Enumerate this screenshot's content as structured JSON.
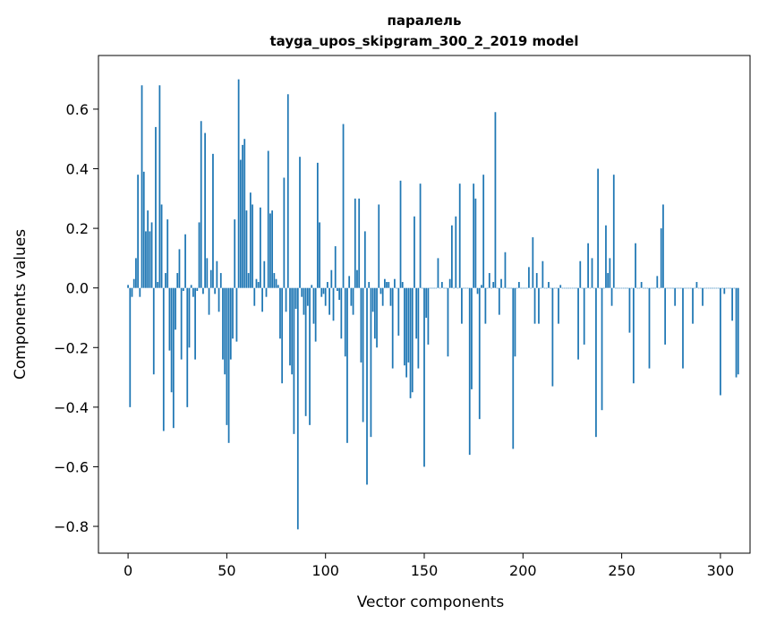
{
  "chart_data": {
    "type": "bar",
    "title_line1": "паралель",
    "title_line2": "tayga_upos_skipgram_300_2_2019 model",
    "xlabel": "Vector components",
    "ylabel": "Components values",
    "xlim": [
      -15,
      315
    ],
    "ylim": [
      -0.89,
      0.78
    ],
    "x_ticks": [
      0,
      50,
      100,
      150,
      200,
      250,
      300
    ],
    "x_tick_labels": [
      "0",
      "50",
      "100",
      "150",
      "200",
      "250",
      "300"
    ],
    "y_ticks": [
      -0.8,
      -0.6,
      -0.4,
      -0.2,
      0.0,
      0.2,
      0.4,
      0.6
    ],
    "y_tick_labels": [
      "−0.8",
      "−0.6",
      "−0.4",
      "−0.2",
      "0.0",
      "0.2",
      "0.4",
      "0.6"
    ],
    "bar_color": "#1f77b4",
    "grid": false,
    "values": [
      0.01,
      -0.4,
      -0.03,
      0.03,
      0.1,
      0.38,
      -0.03,
      0.68,
      0.39,
      0.19,
      0.26,
      0.19,
      0.22,
      -0.29,
      0.54,
      0.02,
      0.68,
      0.28,
      -0.48,
      0.05,
      0.23,
      -0.21,
      -0.35,
      -0.47,
      -0.14,
      0.05,
      0.13,
      -0.24,
      -0.01,
      0.18,
      -0.4,
      -0.2,
      0.01,
      -0.03,
      -0.24,
      -0.01,
      0.22,
      0.56,
      -0.02,
      0.52,
      0.1,
      -0.09,
      0.06,
      0.45,
      -0.02,
      0.09,
      -0.08,
      0.05,
      -0.24,
      -0.29,
      -0.46,
      -0.52,
      -0.24,
      -0.17,
      0.23,
      -0.18,
      0.7,
      0.43,
      0.48,
      0.5,
      0.26,
      0.05,
      0.32,
      0.28,
      -0.06,
      0.03,
      0.02,
      0.27,
      -0.08,
      0.09,
      -0.03,
      0.46,
      0.25,
      0.26,
      0.05,
      0.03,
      0.01,
      -0.17,
      -0.32,
      0.37,
      -0.08,
      0.65,
      -0.26,
      -0.29,
      -0.49,
      -0.07,
      -0.81,
      0.44,
      -0.03,
      -0.09,
      -0.43,
      -0.06,
      -0.46,
      0.01,
      -0.12,
      -0.18,
      0.42,
      0.22,
      -0.03,
      -0.02,
      -0.06,
      0.02,
      -0.09,
      0.06,
      -0.11,
      0.14,
      -0.01,
      -0.04,
      -0.17,
      0.55,
      -0.23,
      -0.52,
      0.04,
      -0.06,
      -0.09,
      0.3,
      0.06,
      0.3,
      -0.25,
      -0.45,
      0.19,
      -0.66,
      0.02,
      -0.5,
      -0.08,
      -0.17,
      -0.2,
      0.28,
      -0.02,
      -0.06,
      0.03,
      0.02,
      0.02,
      -0.06,
      -0.27,
      0.03,
      0.0,
      -0.16,
      0.36,
      0.02,
      -0.26,
      -0.3,
      -0.25,
      -0.37,
      -0.35,
      0.24,
      -0.17,
      -0.27,
      0.35,
      0.0,
      -0.6,
      -0.1,
      -0.19,
      0.0,
      0.0,
      0.0,
      0.0,
      0.1,
      0.0,
      0.02,
      0.0,
      0.0,
      -0.23,
      0.03,
      0.21,
      0.0,
      0.24,
      0.0,
      0.35,
      -0.12,
      0.0,
      0.0,
      0.0,
      -0.56,
      -0.34,
      0.35,
      0.3,
      -0.02,
      -0.44,
      0.01,
      0.38,
      -0.12,
      0.0,
      0.05,
      0.0,
      0.02,
      0.59,
      0.0,
      -0.09,
      0.03,
      0.0,
      0.12,
      0.0,
      0.0,
      0.0,
      -0.54,
      -0.23,
      0.0,
      0.02,
      0.0,
      0.0,
      0.0,
      0.0,
      0.07,
      0.0,
      0.17,
      -0.12,
      0.05,
      -0.12,
      0.0,
      0.09,
      0.0,
      0.0,
      0.02,
      0.0,
      -0.33,
      0.0,
      0.0,
      -0.12,
      0.01,
      0.0,
      0.0,
      0.0,
      0.0,
      0.0,
      0.0,
      0.0,
      0.0,
      -0.24,
      0.09,
      0.0,
      -0.19,
      0.0,
      0.15,
      0.0,
      0.1,
      0.0,
      -0.5,
      0.4,
      0.0,
      -0.41,
      0.0,
      0.21,
      0.05,
      0.1,
      -0.06,
      0.38,
      0.0,
      0.0,
      0.0,
      0.0,
      0.0,
      0.0,
      0.0,
      -0.15,
      0.0,
      -0.32,
      0.15,
      0.0,
      0.0,
      0.02,
      0.0,
      0.0,
      0.0,
      -0.27,
      0.0,
      0.0,
      0.0,
      0.04,
      0.0,
      0.2,
      0.28,
      -0.19,
      0.0,
      0.0,
      0.0,
      0.0,
      -0.06,
      0.0,
      0.0,
      0.0,
      -0.27,
      0.0,
      0.0,
      0.0,
      0.0,
      -0.12,
      0.0,
      0.02,
      0.0,
      0.0,
      -0.06,
      0.0,
      0.0,
      0.0,
      0.0,
      0.0,
      0.0,
      0.0,
      0.0,
      -0.36,
      0.0,
      -0.02,
      0.0,
      0.0,
      0.0,
      -0.11,
      0.0,
      -0.3,
      -0.29
    ]
  }
}
